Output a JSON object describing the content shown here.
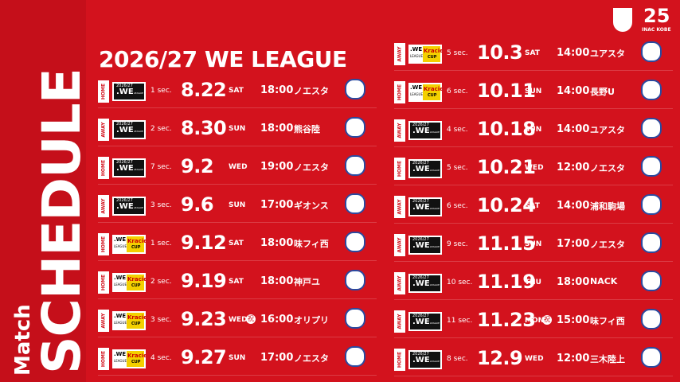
{
  "header": {
    "title": "2026/27 WE LEAGUE",
    "side_label": "Match",
    "side_title": "SCHEDULE",
    "club": "INAC KOBE",
    "anniversary": "25"
  },
  "columns": [
    [
      {
        "tag": "HOME",
        "badge": [
          "2026/27",
          ".WE",
          "LEAGUE"
        ],
        "sec": "1 sec.",
        "date": "8.22",
        "day": "SAT",
        "time": "18:00",
        "venue": "ノエスタ"
      },
      {
        "tag": "AWAY",
        "badge": [
          "2026/27",
          ".WE",
          "LEAGUE"
        ],
        "sec": "2 sec.",
        "date": "8.30",
        "day": "SUN",
        "time": "18:00",
        "venue": "熊谷陸"
      },
      {
        "tag": "HOME",
        "badge": [
          "2026/27",
          ".WE",
          "LEAGUE"
        ],
        "sec": "7 sec.",
        "date": "9.2",
        "day": "WED",
        "time": "19:00",
        "venue": "ノエスタ"
      },
      {
        "tag": "AWAY",
        "badge": [
          "2026/27",
          ".WE",
          "LEAGUE"
        ],
        "sec": "3 sec.",
        "date": "9.6",
        "day": "SUN",
        "time": "17:00",
        "venue": "ギオンス"
      },
      {
        "tag": "HOME",
        "badge": [
          ".WE",
          "LEAGUE",
          "Kracie",
          "CUP"
        ],
        "sec": "1 sec.",
        "date": "9.12",
        "day": "SAT",
        "time": "18:00",
        "venue": "味フィ西"
      },
      {
        "tag": "HOME",
        "badge": [
          ".WE",
          "LEAGUE",
          "Kracie",
          "CUP"
        ],
        "sec": "2 sec.",
        "date": "9.19",
        "day": "SAT",
        "time": "18:00",
        "venue": "神戸ユ"
      },
      {
        "tag": "AWAY",
        "badge": [
          ".WE",
          "LEAGUE",
          "Kracie",
          "CUP"
        ],
        "sec": "3 sec.",
        "date": "9.23",
        "day": "WED",
        "holiday": "祝",
        "time": "16:00",
        "venue": "オリプリ"
      },
      {
        "tag": "HOME",
        "badge": [
          ".WE",
          "LEAGUE",
          "Kracie",
          "CUP"
        ],
        "sec": "4 sec.",
        "date": "9.27",
        "day": "SUN",
        "time": "17:00",
        "venue": "ノエスタ"
      }
    ],
    [
      {
        "tag": "AWAY",
        "badge": [
          ".WE",
          "LEAGUE",
          "Kracie",
          "CUP"
        ],
        "sec": "5 sec.",
        "date": "10.3",
        "day": "SAT",
        "time": "14:00",
        "venue": "ユアスタ"
      },
      {
        "tag": "HOME",
        "badge": [
          ".WE",
          "LEAGUE",
          "Kracie",
          "CUP"
        ],
        "sec": "6 sec.",
        "date": "10.11",
        "day": "SUN",
        "time": "14:00",
        "venue": "長野U"
      },
      {
        "tag": "AWAY",
        "badge": [
          "2026/27",
          ".WE",
          "LEAGUE"
        ],
        "sec": "4 sec.",
        "date": "10.18",
        "day": "SUN",
        "time": "14:00",
        "venue": "ユアスタ"
      },
      {
        "tag": "HOME",
        "badge": [
          "2026/27",
          ".WE",
          "LEAGUE"
        ],
        "sec": "5 sec.",
        "date": "10.21",
        "day": "WED",
        "time": "12:00",
        "venue": "ノエスタ"
      },
      {
        "tag": "AWAY",
        "badge": [
          "2026/27",
          ".WE",
          "LEAGUE"
        ],
        "sec": "6 sec.",
        "date": "10.24",
        "day": "SAT",
        "time": "14:00",
        "venue": "浦和駒場"
      },
      {
        "tag": "AWAY",
        "badge": [
          "2026/27",
          ".WE",
          "LEAGUE"
        ],
        "sec": "9 sec.",
        "date": "11.15",
        "day": "SUN",
        "time": "17:00",
        "venue": "ノエスタ"
      },
      {
        "tag": "AWAY",
        "badge": [
          "2026/27",
          ".WE",
          "LEAGUE"
        ],
        "sec": "10 sec.",
        "date": "11.19",
        "day": "THU",
        "time": "18:00",
        "venue": "NACK"
      },
      {
        "tag": "AWAY",
        "badge": [
          "2026/27",
          ".WE",
          "LEAGUE"
        ],
        "sec": "11 sec.",
        "date": "11.23",
        "day": "MON",
        "holiday": "祝",
        "time": "15:00",
        "venue": "味フィ西"
      },
      {
        "tag": "HOME",
        "badge": [
          "2026/27",
          ".WE",
          "LEAGUE"
        ],
        "sec": "8 sec.",
        "date": "12.9",
        "day": "WED",
        "time": "12:00",
        "venue": "三木陸上"
      }
    ]
  ]
}
